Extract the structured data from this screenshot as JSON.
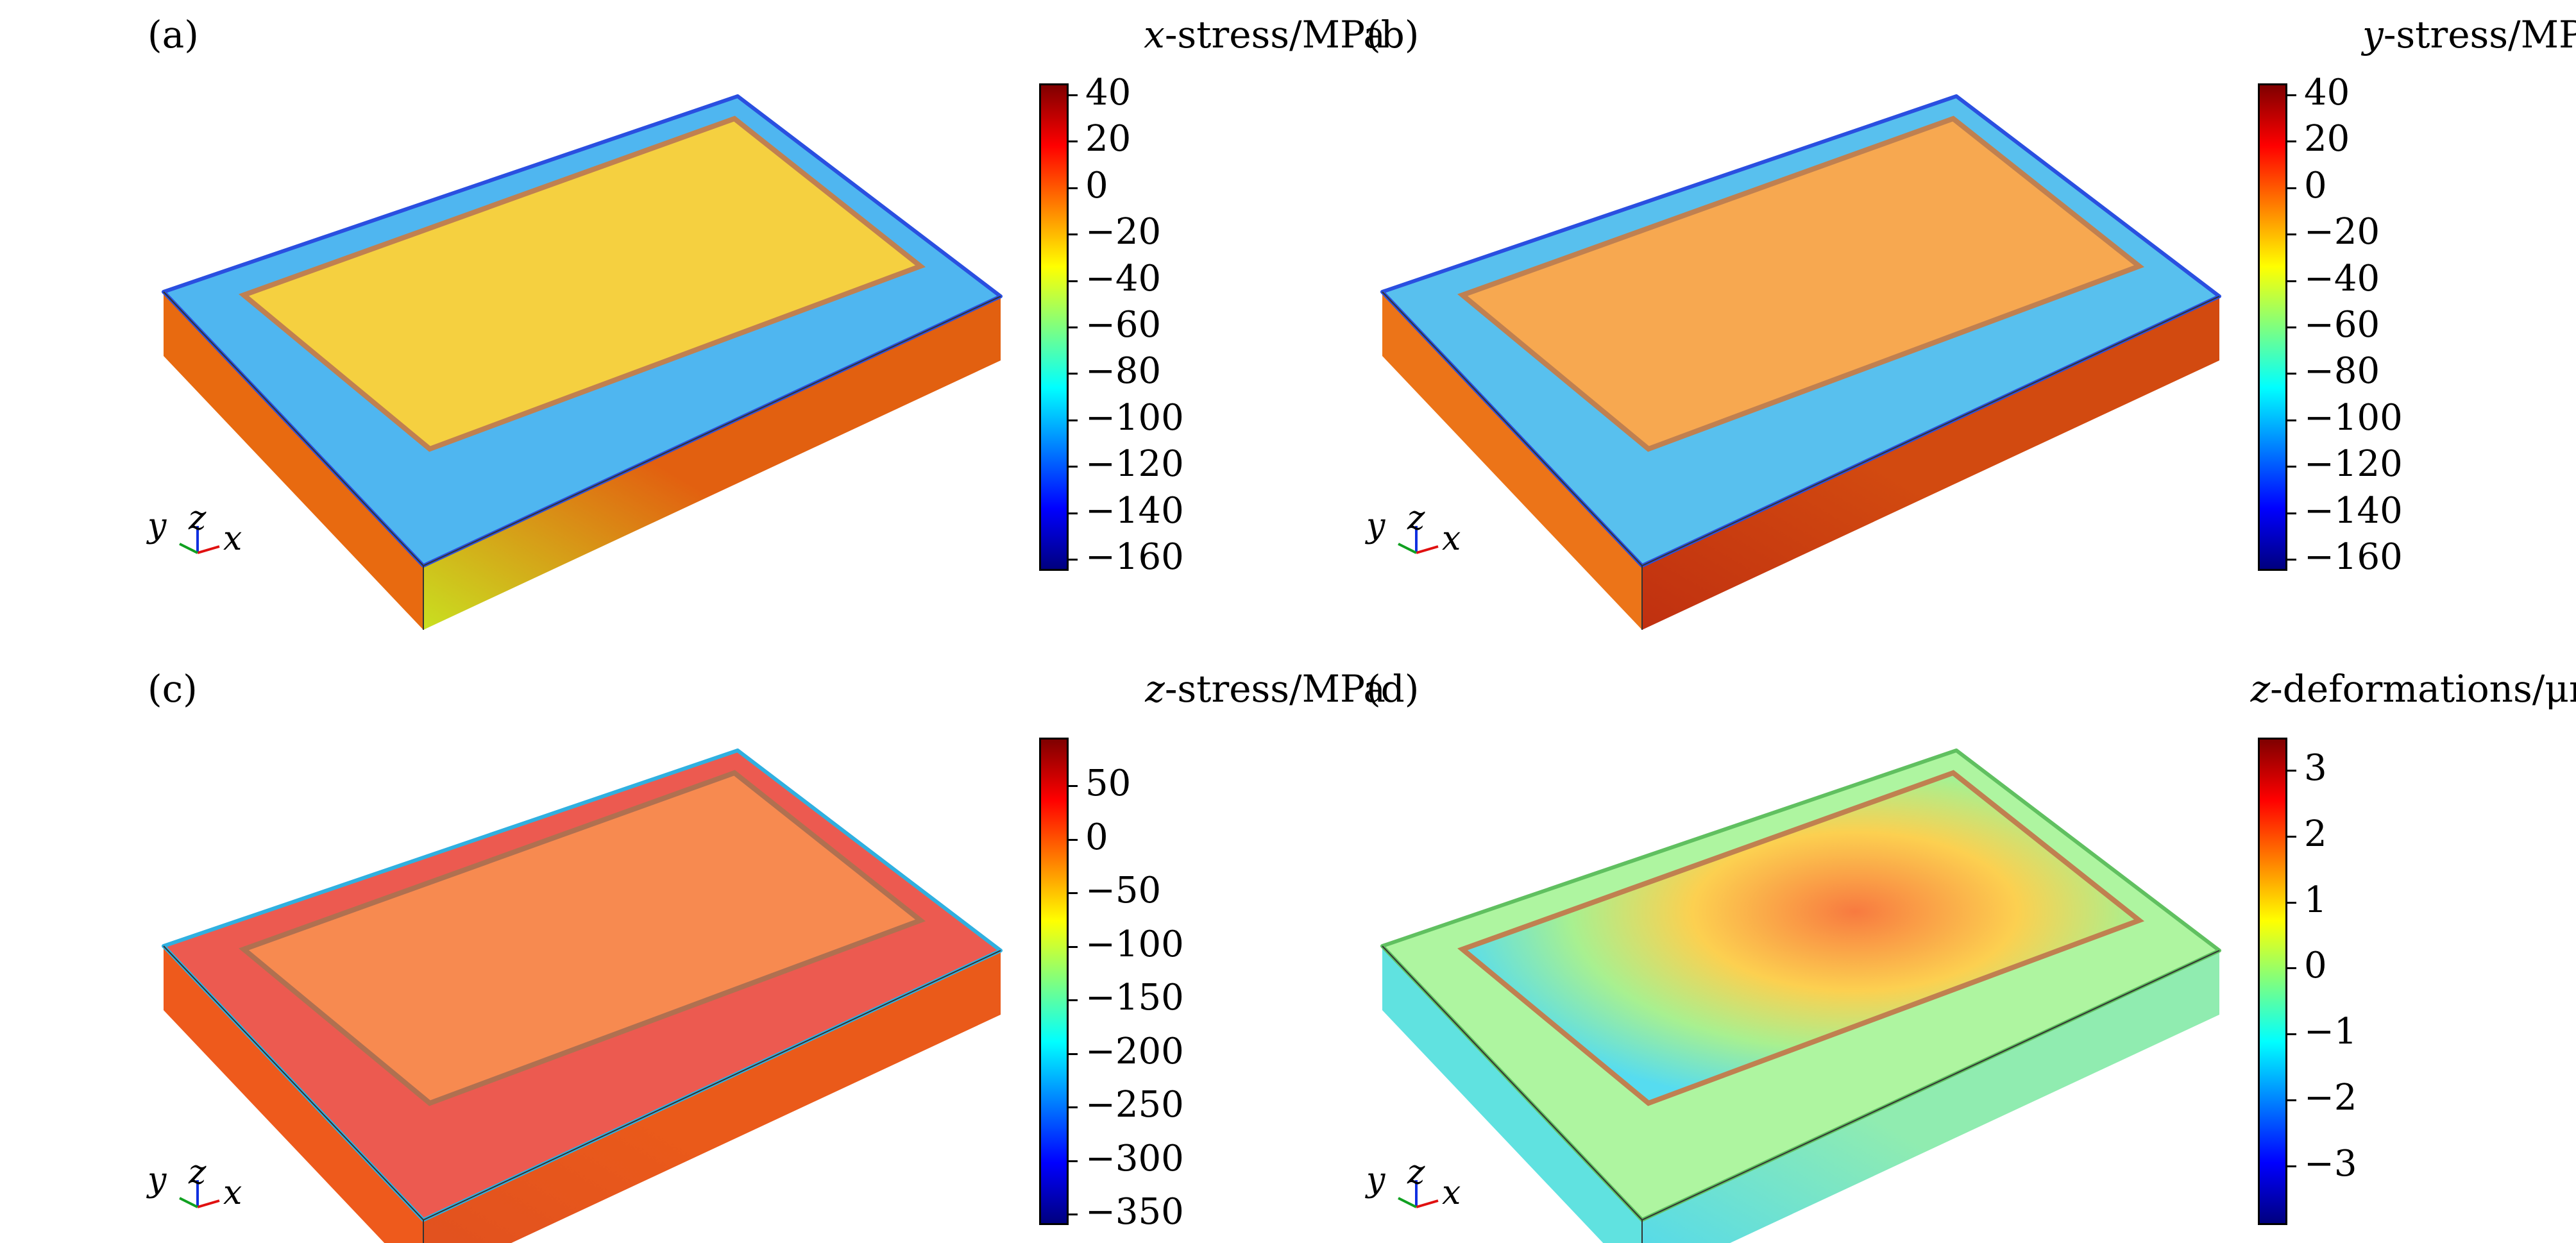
{
  "panels": [
    {
      "label": "(a)",
      "colorbar": {
        "var": "x",
        "unit_text": "-stress/MPa",
        "min": -165,
        "max": 45,
        "ticks": [
          "40",
          "20",
          "0",
          "−20",
          "−40",
          "−60",
          "−80",
          "−100",
          "−120",
          "−140",
          "−160"
        ],
        "tick_values": [
          40,
          20,
          0,
          -20,
          -40,
          -60,
          -80,
          -100,
          -120,
          -140,
          -160
        ]
      },
      "colors": {
        "frame_top": "#4fb6f0",
        "frame_edge": "#2a4fe0",
        "inner_top": "#f5d040",
        "trace": "#c08050",
        "front_side": "#e86a10",
        "right_side": "#e26010",
        "right_low": "#c9e020"
      },
      "axes": {
        "y": "y",
        "z": "z",
        "x": "x"
      }
    },
    {
      "label": "(b)",
      "colorbar": {
        "var": "y",
        "unit_text": "-stress/MPa",
        "min": -165,
        "max": 45,
        "ticks": [
          "40",
          "20",
          "0",
          "−20",
          "−40",
          "−60",
          "−80",
          "−100",
          "−120",
          "−140",
          "−160"
        ],
        "tick_values": [
          40,
          20,
          0,
          -20,
          -40,
          -60,
          -80,
          -100,
          -120,
          -140,
          -160
        ]
      },
      "colors": {
        "frame_top": "#58c0ee",
        "frame_edge": "#2a4fe0",
        "inner_top": "#f7a850",
        "trace": "#c08050",
        "front_side": "#ec7418",
        "right_side": "#d24a10",
        "right_low": "#c03010"
      },
      "axes": {
        "y": "y",
        "z": "z",
        "x": "x"
      }
    },
    {
      "label": "(c)",
      "colorbar": {
        "var": "z",
        "unit_text": "-stress/MPa",
        "min": -360,
        "max": 95,
        "ticks": [
          "50",
          "0",
          "−50",
          "−100",
          "−150",
          "−200",
          "−250",
          "−300",
          "−350"
        ],
        "tick_values": [
          50,
          0,
          -50,
          -100,
          -150,
          -200,
          -250,
          -300,
          -350
        ]
      },
      "colors": {
        "frame_top": "#ec5a50",
        "frame_edge": "#30b0e0",
        "inner_top": "#f78a50",
        "trace": "#b07050",
        "front_side": "#ee5a1c",
        "right_side": "#ea5a1a",
        "right_low": "#e05020"
      },
      "axes": {
        "y": "y",
        "z": "z",
        "x": "x"
      }
    },
    {
      "label": "(d)",
      "colorbar": {
        "var": "z",
        "unit_text": "-deformations/μm",
        "min": -3.9,
        "max": 3.5,
        "ticks": [
          "3",
          "2",
          "1",
          "0",
          "−1",
          "−2",
          "−3"
        ],
        "tick_values": [
          3,
          2,
          1,
          0,
          -1,
          -2,
          -3
        ]
      },
      "colors": {
        "frame_top": "#aef5a0",
        "frame_edge": "#60c060",
        "inner_top": "#56dcf0",
        "trace": "#c08050",
        "front_side": "#60e2e0",
        "right_side": "#90ecb0",
        "right_low": "#4fd8f0",
        "center_hot": "#f87a40"
      },
      "axes": {
        "y": "y",
        "z": "z",
        "x": "x"
      }
    }
  ]
}
